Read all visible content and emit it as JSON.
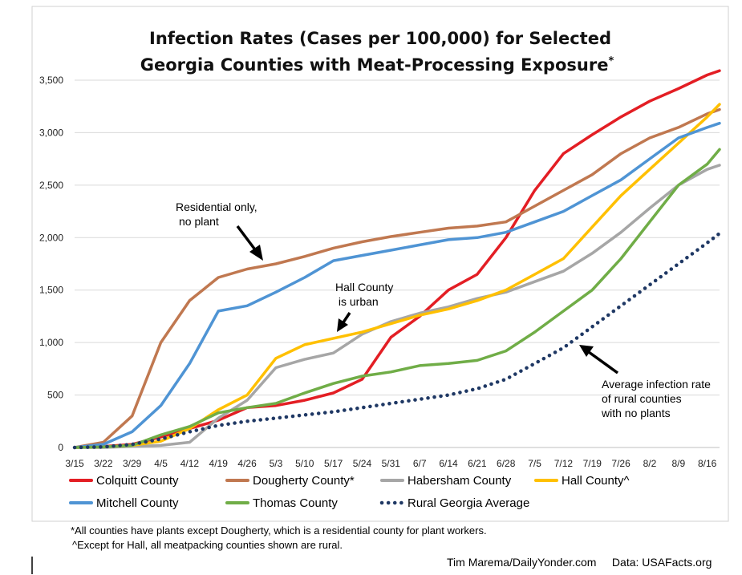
{
  "chart_data": {
    "type": "line",
    "title_lines": [
      "Infection Rates (Cases per 100,000) for Selected",
      "Georgia Counties with Meat-Processing Exposure"
    ],
    "title_mark": "*",
    "xlabel": "",
    "ylabel": "",
    "ylim": [
      0,
      3500
    ],
    "yticks": [
      0,
      500,
      1000,
      1500,
      2000,
      2500,
      3000,
      3500
    ],
    "ytick_labels": [
      "0",
      "500",
      "1,000",
      "1,500",
      "2,000",
      "2,500",
      "3,000",
      "3,500"
    ],
    "x_start": "3/15",
    "x_end": "8/19",
    "xtick_labels": [
      "3/15",
      "3/22",
      "3/29",
      "4/5",
      "4/12",
      "4/19",
      "4/26",
      "5/3",
      "5/10",
      "5/17",
      "5/24",
      "5/31",
      "6/7",
      "6/14",
      "6/21",
      "6/28",
      "7/5",
      "7/12",
      "7/19",
      "7/26",
      "8/2",
      "8/9",
      "8/16"
    ],
    "x": [
      "3/15",
      "3/22",
      "3/29",
      "4/5",
      "4/12",
      "4/19",
      "4/26",
      "5/3",
      "5/10",
      "5/17",
      "5/24",
      "5/31",
      "6/7",
      "6/14",
      "6/21",
      "6/28",
      "7/5",
      "7/12",
      "7/19",
      "7/26",
      "8/2",
      "8/9",
      "8/16",
      "8/19"
    ],
    "grid": "horizontal",
    "legend_placement": "bottom",
    "series": [
      {
        "name": "Colquitt County",
        "color": "#e31e24",
        "style": "solid",
        "values": [
          0,
          10,
          30,
          100,
          180,
          260,
          380,
          400,
          450,
          520,
          650,
          1050,
          1250,
          1500,
          1650,
          2000,
          2450,
          2800,
          2980,
          3150,
          3300,
          3420,
          3550,
          3590
        ]
      },
      {
        "name": "Dougherty County*",
        "color": "#c07850",
        "style": "solid",
        "values": [
          0,
          50,
          300,
          1000,
          1400,
          1620,
          1700,
          1750,
          1820,
          1900,
          1960,
          2010,
          2050,
          2090,
          2110,
          2150,
          2300,
          2450,
          2600,
          2800,
          2950,
          3050,
          3180,
          3220
        ]
      },
      {
        "name": "Habersham County",
        "color": "#a6a6a6",
        "style": "solid",
        "values": [
          0,
          0,
          10,
          20,
          50,
          280,
          450,
          760,
          840,
          900,
          1080,
          1200,
          1280,
          1340,
          1420,
          1480,
          1580,
          1680,
          1850,
          2050,
          2280,
          2500,
          2650,
          2690
        ]
      },
      {
        "name": "Hall County^",
        "color": "#ffc000",
        "style": "solid",
        "values": [
          0,
          5,
          20,
          60,
          180,
          360,
          500,
          850,
          980,
          1040,
          1100,
          1180,
          1260,
          1320,
          1400,
          1500,
          1650,
          1800,
          2100,
          2400,
          2650,
          2900,
          3150,
          3270
        ]
      },
      {
        "name": "Mitchell County",
        "color": "#4f94d4",
        "style": "solid",
        "values": [
          0,
          30,
          150,
          400,
          800,
          1300,
          1350,
          1480,
          1620,
          1780,
          1830,
          1880,
          1930,
          1980,
          2000,
          2050,
          2150,
          2250,
          2400,
          2550,
          2750,
          2950,
          3050,
          3090
        ]
      },
      {
        "name": "Thomas County",
        "color": "#70ad47",
        "style": "solid",
        "values": [
          0,
          5,
          20,
          120,
          200,
          330,
          380,
          420,
          520,
          610,
          680,
          720,
          780,
          800,
          830,
          920,
          1100,
          1300,
          1500,
          1800,
          2150,
          2500,
          2700,
          2840
        ]
      },
      {
        "name": "Rural Georgia Average",
        "color": "#1f3864",
        "style": "dotted",
        "values": [
          0,
          5,
          30,
          80,
          150,
          210,
          250,
          280,
          310,
          340,
          380,
          420,
          460,
          500,
          560,
          650,
          800,
          950,
          1150,
          1350,
          1550,
          1750,
          1950,
          2040
        ]
      }
    ],
    "annotations": [
      {
        "lines": [
          "Residential only,",
          "no plant"
        ],
        "arrow_to_series": "Dougherty County*"
      },
      {
        "lines": [
          "Hall County",
          " is urban"
        ],
        "arrow_to_series": "Hall County^"
      },
      {
        "lines": [
          "Average infection rate",
          "of rural counties",
          "with no plants"
        ],
        "arrow_to_series": "Rural Georgia Average"
      }
    ]
  },
  "footnotes": [
    "*All counties have plants except Dougherty, which is a residential county for plant workers.",
    "^Except for Hall, all meatpacking counties shown are rural."
  ],
  "credit": "Tim Marema/DailyYonder.com     Data: USAFacts.org"
}
